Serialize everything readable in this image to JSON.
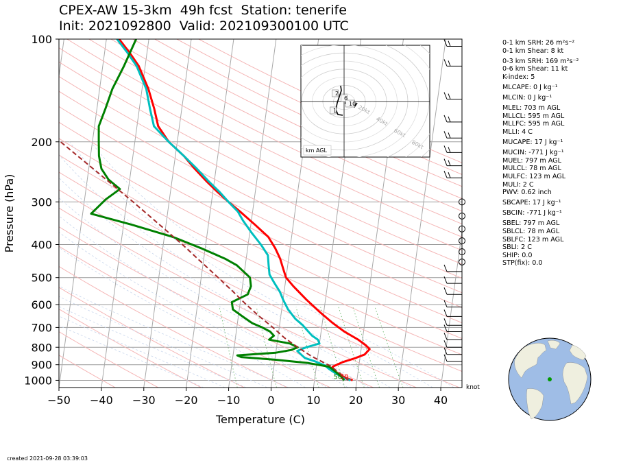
{
  "header": {
    "title_line1": "CPEX-AW 15-3km  49h fcst  Station: tenerife",
    "title_line2": "Init: 2021092800  Valid: 202109300100 UTC"
  },
  "chart_data": {
    "type": "skew-t log-p",
    "xlabel": "Temperature (C)",
    "ylabel": "Pressure (hPa)",
    "xlim": [
      -50,
      45
    ],
    "ylim": [
      1050,
      100
    ],
    "x_ticks": [
      -50,
      -40,
      -30,
      -20,
      -10,
      0,
      10,
      20,
      30,
      40
    ],
    "y_ticks": [
      100,
      200,
      300,
      400,
      500,
      600,
      700,
      800,
      900,
      1000
    ],
    "y_tick_labels": [
      "100",
      "200",
      "300",
      "400",
      "500",
      "600",
      "700",
      "800",
      "900",
      "1000"
    ],
    "grid": true,
    "series": [
      {
        "role": "temperature",
        "color": "#ff0000",
        "points": [
          [
            1000,
            19
          ],
          [
            980,
            17
          ],
          [
            950,
            15
          ],
          [
            925,
            13.5
          ],
          [
            910,
            14
          ],
          [
            885,
            16
          ],
          [
            860,
            19
          ],
          [
            840,
            21
          ],
          [
            810,
            22
          ],
          [
            790,
            21
          ],
          [
            760,
            19
          ],
          [
            720,
            15.5
          ],
          [
            680,
            12.5
          ],
          [
            630,
            9
          ],
          [
            580,
            5.5
          ],
          [
            530,
            2
          ],
          [
            500,
            0
          ],
          [
            470,
            -1
          ],
          [
            440,
            -2
          ],
          [
            410,
            -3.5
          ],
          [
            380,
            -5.5
          ],
          [
            350,
            -9
          ],
          [
            320,
            -13
          ],
          [
            300,
            -16
          ],
          [
            280,
            -19
          ],
          [
            260,
            -22
          ],
          [
            240,
            -25
          ],
          [
            220,
            -28
          ],
          [
            200,
            -32
          ],
          [
            180,
            -35
          ],
          [
            160,
            -36.5
          ],
          [
            140,
            -38.5
          ],
          [
            120,
            -41.5
          ],
          [
            110,
            -44
          ],
          [
            100,
            -47
          ]
        ]
      },
      {
        "role": "dewpoint",
        "color": "#00bfbf",
        "points": [
          [
            1000,
            18.5
          ],
          [
            980,
            16.5
          ],
          [
            950,
            14.5
          ],
          [
            925,
            13
          ],
          [
            905,
            12
          ],
          [
            880,
            9.5
          ],
          [
            860,
            7
          ],
          [
            840,
            6
          ],
          [
            820,
            5
          ],
          [
            800,
            7
          ],
          [
            780,
            10
          ],
          [
            760,
            9.5
          ],
          [
            740,
            8
          ],
          [
            720,
            7
          ],
          [
            690,
            5.5
          ],
          [
            660,
            3.5
          ],
          [
            620,
            1.5
          ],
          [
            580,
            0
          ],
          [
            550,
            -1
          ],
          [
            520,
            -2.5
          ],
          [
            490,
            -4
          ],
          [
            460,
            -4.5
          ],
          [
            430,
            -5
          ],
          [
            400,
            -7
          ],
          [
            370,
            -9.5
          ],
          [
            340,
            -12
          ],
          [
            320,
            -13.5
          ],
          [
            300,
            -16
          ],
          [
            280,
            -18.5
          ],
          [
            260,
            -21.5
          ],
          [
            240,
            -24.5
          ],
          [
            220,
            -28
          ],
          [
            200,
            -32
          ],
          [
            180,
            -36
          ],
          [
            160,
            -37.5
          ],
          [
            140,
            -39
          ],
          [
            120,
            -42
          ],
          [
            110,
            -44.5
          ],
          [
            100,
            -47.5
          ]
        ]
      },
      {
        "role": "wetbulb",
        "color": "#008000",
        "points": [
          [
            1000,
            17
          ],
          [
            970,
            16
          ],
          [
            950,
            15
          ],
          [
            930,
            14
          ],
          [
            912,
            13
          ],
          [
            890,
            8
          ],
          [
            870,
            0
          ],
          [
            855,
            -8
          ],
          [
            845,
            -9
          ],
          [
            830,
            0
          ],
          [
            815,
            3.5
          ],
          [
            800,
            5
          ],
          [
            780,
            3
          ],
          [
            760,
            -2
          ],
          [
            740,
            -1
          ],
          [
            720,
            -2
          ],
          [
            700,
            -4
          ],
          [
            680,
            -6.5
          ],
          [
            650,
            -9
          ],
          [
            620,
            -11.5
          ],
          [
            590,
            -12
          ],
          [
            560,
            -8.5
          ],
          [
            530,
            -8
          ],
          [
            500,
            -8.5
          ],
          [
            460,
            -12
          ],
          [
            440,
            -15
          ],
          [
            410,
            -21
          ],
          [
            380,
            -28
          ],
          [
            350,
            -38
          ],
          [
            325,
            -48
          ],
          [
            295,
            -45
          ],
          [
            275,
            -42
          ],
          [
            258,
            -45
          ],
          [
            240,
            -47
          ],
          [
            220,
            -48
          ],
          [
            200,
            -48.5
          ],
          [
            180,
            -49
          ],
          [
            160,
            -48
          ],
          [
            140,
            -47
          ],
          [
            120,
            -45
          ],
          [
            100,
            -43
          ]
        ]
      },
      {
        "role": "parcel",
        "color": "#a52a2a",
        "style": "dashed",
        "points": [
          [
            1000,
            18
          ],
          [
            950,
            15.5
          ],
          [
            910,
            13.5
          ],
          [
            880,
            11
          ],
          [
            850,
            8.5
          ],
          [
            800,
            5
          ],
          [
            750,
            1.5
          ],
          [
            700,
            -1.5
          ],
          [
            650,
            -5
          ],
          [
            600,
            -8.5
          ],
          [
            550,
            -12
          ],
          [
            500,
            -16
          ],
          [
            450,
            -20.5
          ],
          [
            400,
            -25.5
          ],
          [
            350,
            -31.5
          ],
          [
            300,
            -38.5
          ],
          [
            250,
            -47
          ],
          [
            200,
            -57.5
          ],
          [
            150,
            -70
          ],
          [
            120,
            -80
          ]
        ]
      }
    ],
    "surface_labels": [
      "50",
      "50"
    ],
    "hodograph": {
      "label": "km AGL",
      "ring_labels": [
        "20kt",
        "40kt",
        "60kt",
        "80kt"
      ],
      "height_markers": [
        "1",
        "2",
        "6",
        "10"
      ]
    },
    "wind_unit_label": "knot"
  },
  "indices": [
    {
      "text": "0-1 km SRH: 26 m²s⁻²",
      "gap": false
    },
    {
      "text": "0-1 km Shear: 8 kt",
      "gap": false
    },
    {
      "text": "0-3 km SRH: 169 m²s⁻²",
      "gap": true
    },
    {
      "text": "0-6 km Shear: 11 kt",
      "gap": false
    },
    {
      "text": "K-index: 5",
      "gap": false
    },
    {
      "text": "MLCAPE: 0 J kg⁻¹",
      "gap": true
    },
    {
      "text": "MLCIN: 0 J kg⁻¹",
      "gap": true
    },
    {
      "text": "MLEL: 703 m AGL",
      "gap": true
    },
    {
      "text": "MLLCL: 595 m AGL",
      "gap": false
    },
    {
      "text": "MLLFC: 595 m AGL",
      "gap": false
    },
    {
      "text": "MLLI: 4 C",
      "gap": false
    },
    {
      "text": "MUCAPE: 17 J kg⁻¹",
      "gap": true
    },
    {
      "text": "MUCIN: -771 J kg⁻¹",
      "gap": true
    },
    {
      "text": "MUEL: 797 m AGL",
      "gap": false
    },
    {
      "text": "MULCL: 78 m AGL",
      "gap": false
    },
    {
      "text": "MULFC: 123 m AGL",
      "gap": false
    },
    {
      "text": "MULI: 2 C",
      "gap": false
    },
    {
      "text": "PWV: 0.62 inch",
      "gap": false
    },
    {
      "text": "SBCAPE: 17 J kg⁻¹",
      "gap": true
    },
    {
      "text": "SBCIN: -771 J kg⁻¹",
      "gap": true
    },
    {
      "text": "SBEL: 797 m AGL",
      "gap": true
    },
    {
      "text": "SBLCL: 78 m AGL",
      "gap": false
    },
    {
      "text": "SBLFC: 123 m AGL",
      "gap": false
    },
    {
      "text": "SBLI: 2 C",
      "gap": false
    },
    {
      "text": "SHIP: 0.0",
      "gap": false
    },
    {
      "text": "STP(fix): 0.0",
      "gap": false
    }
  ],
  "footer": {
    "created": "created 2021-09-28 03:39:03"
  },
  "colors": {
    "temperature": "#ff0000",
    "dewpoint": "#00bfbf",
    "wetbulb": "#008000",
    "parcel": "#a52a2a",
    "ocean": "#9fbde6",
    "land": "#efefdf",
    "station": "#009900"
  }
}
